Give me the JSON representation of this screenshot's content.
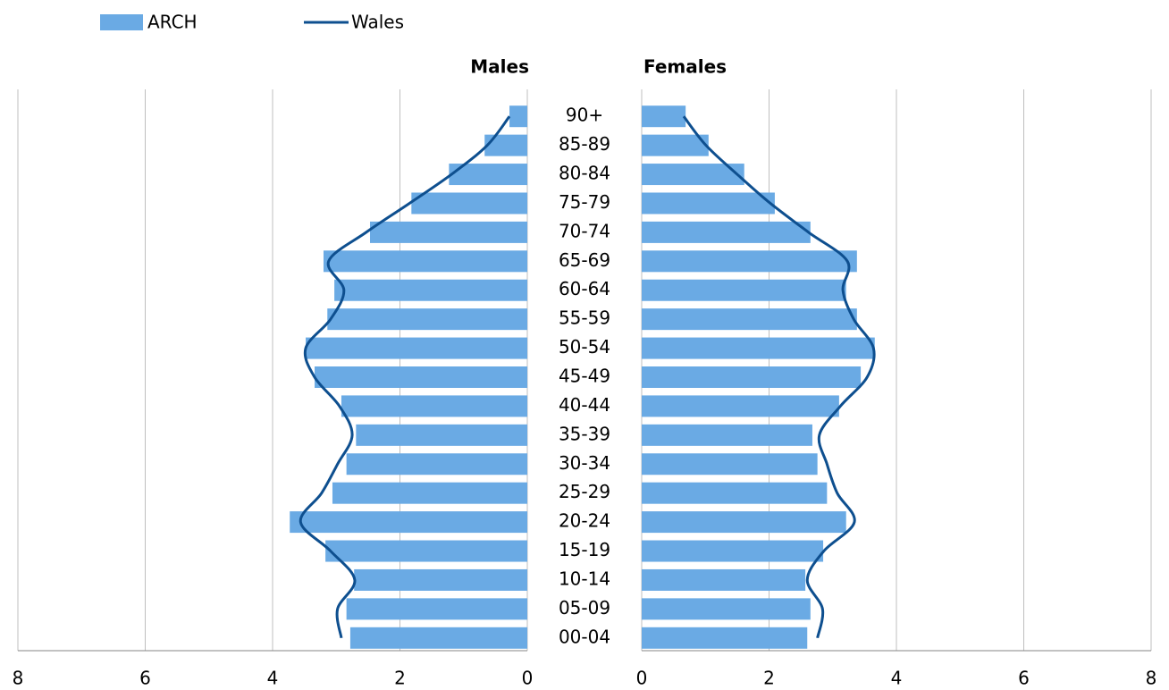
{
  "chart_data": [
    {
      "type": "bar",
      "title": "Males",
      "categories": [
        "90+",
        "85-89",
        "80-84",
        "75-79",
        "70-74",
        "65-69",
        "60-64",
        "55-59",
        "50-54",
        "45-49",
        "40-44",
        "35-39",
        "30-34",
        "25-29",
        "20-24",
        "15-19",
        "10-14",
        "05-09",
        "00-04"
      ],
      "series": [
        {
          "name": "ARCH",
          "type": "bar",
          "color": "#6aaae4",
          "values": [
            0.28,
            0.67,
            1.23,
            1.82,
            2.47,
            3.2,
            3.03,
            3.14,
            3.48,
            3.34,
            2.92,
            2.69,
            2.84,
            3.06,
            3.73,
            3.17,
            2.72,
            2.84,
            2.78
          ]
        },
        {
          "name": "Wales",
          "type": "line",
          "color": "#0e4f8f",
          "values": [
            0.28,
            0.63,
            1.19,
            1.85,
            2.53,
            3.12,
            2.88,
            3.09,
            3.48,
            3.34,
            2.95,
            2.75,
            2.98,
            3.23,
            3.56,
            3.09,
            2.71,
            2.98,
            2.92
          ]
        }
      ],
      "xlim": [
        8,
        0
      ],
      "xticks": [
        8,
        6,
        4,
        2,
        0
      ],
      "grid": true
    },
    {
      "type": "bar",
      "title": "Females",
      "series": [
        {
          "type": "bar",
          "color": "#6aaae4",
          "values": [
            0.69,
            1.05,
            1.61,
            2.09,
            2.65,
            3.38,
            3.21,
            3.38,
            3.66,
            3.44,
            3.1,
            2.68,
            2.76,
            2.91,
            3.21,
            2.85,
            2.57,
            2.65,
            2.6
          ]
        },
        {
          "type": "line",
          "color": "#0e4f8f",
          "values": [
            0.66,
            1.01,
            1.5,
            2.02,
            2.62,
            3.23,
            3.16,
            3.33,
            3.64,
            3.54,
            3.12,
            2.79,
            2.91,
            3.07,
            3.34,
            2.86,
            2.6,
            2.84,
            2.76
          ]
        }
      ],
      "xlim": [
        0,
        8
      ],
      "xticks": [
        0,
        2,
        4,
        6,
        8
      ],
      "grid": true
    }
  ]
}
